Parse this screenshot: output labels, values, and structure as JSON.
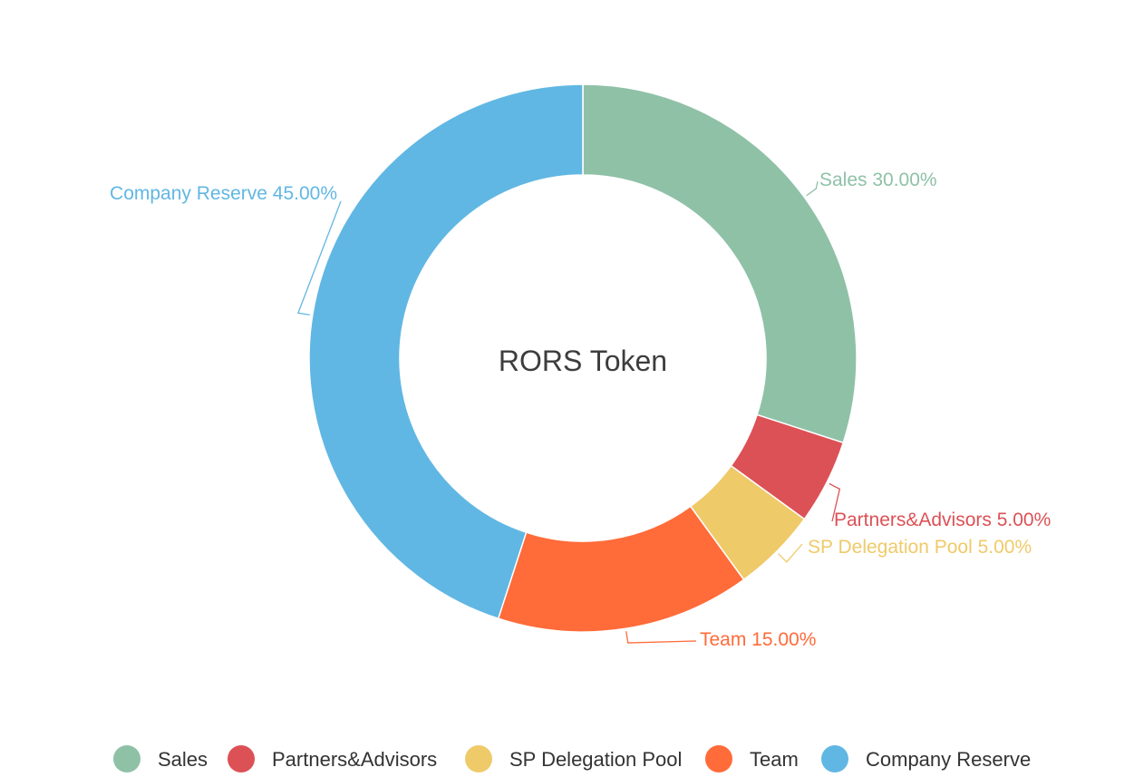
{
  "chart_data": {
    "type": "pie",
    "variant": "donut",
    "title": "RORS Token",
    "start_angle_deg": 0,
    "direction": "clockwise",
    "slices": [
      {
        "name": "Sales",
        "value": 30,
        "label": "Sales 30.00%",
        "color": "#8fc1a7"
      },
      {
        "name": "Partners&Advisors",
        "value": 5,
        "label": "Partners&Advisors 5.00%",
        "color": "#dc5156"
      },
      {
        "name": "SP Delegation Pool",
        "value": 5,
        "label": "SP Delegation Pool 5.00%",
        "color": "#efca69"
      },
      {
        "name": "Team",
        "value": 15,
        "label": "Team 15.00%",
        "color": "#ff6b39"
      },
      {
        "name": "Company Reserve",
        "value": 45,
        "label": "Company Reserve 45.00%",
        "color": "#61b7e3"
      }
    ],
    "legend": {
      "position": "bottom",
      "items": [
        "Sales",
        "Partners&Advisors",
        "SP Delegation Pool",
        "Team",
        "Company Reserve"
      ]
    }
  }
}
